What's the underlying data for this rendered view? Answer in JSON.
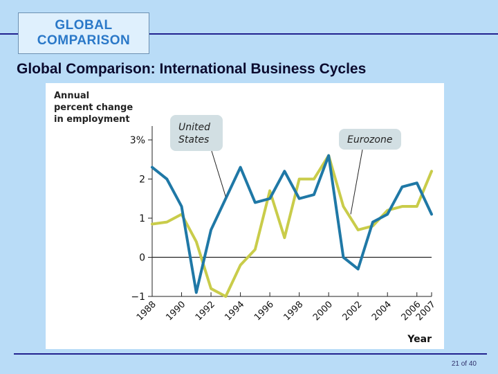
{
  "header": {
    "badge_line1": "GLOBAL",
    "badge_line2": "COMPARISON",
    "title": "Global Comparison: International Business Cycles"
  },
  "footer": {
    "page_label": "21 of 40"
  },
  "chart_data": {
    "type": "line",
    "ylabel_lines": [
      "Annual",
      "percent change",
      "in employment"
    ],
    "xlabel": "Year",
    "ylim": [
      -1,
      3
    ],
    "y_ticks": [
      {
        "value": -1,
        "label": "−1"
      },
      {
        "value": 0,
        "label": "0"
      },
      {
        "value": 1,
        "label": "1"
      },
      {
        "value": 2,
        "label": "2"
      },
      {
        "value": 3,
        "label": "3%"
      }
    ],
    "x_ticks": [
      "1988",
      "1990",
      "1992",
      "1994",
      "1996",
      "1998",
      "2000",
      "2002",
      "2004",
      "2006",
      "2007"
    ],
    "x": [
      1988,
      1989,
      1990,
      1991,
      1992,
      1993,
      1994,
      1995,
      1996,
      1997,
      1998,
      1999,
      2000,
      2001,
      2002,
      2003,
      2004,
      2005,
      2006,
      2007
    ],
    "series": [
      {
        "name": "United States",
        "label_lines": [
          "United",
          "States"
        ],
        "label_anchor": [
          1993,
          1.55
        ],
        "color": "#1f78a6",
        "values": [
          2.3,
          2.0,
          1.3,
          -0.9,
          0.7,
          1.5,
          2.3,
          1.4,
          1.5,
          2.2,
          1.5,
          1.6,
          2.6,
          0.0,
          -0.3,
          0.9,
          1.1,
          1.8,
          1.9,
          1.1
        ]
      },
      {
        "name": "Eurozone",
        "label_lines": [
          "Eurozone"
        ],
        "label_anchor": [
          2001.5,
          1.1
        ],
        "color": "#c9cc4a",
        "values": [
          0.85,
          0.9,
          1.1,
          0.4,
          -0.8,
          -1.0,
          -0.2,
          0.2,
          1.7,
          0.5,
          2.0,
          2.0,
          2.6,
          1.3,
          0.7,
          0.8,
          1.2,
          1.3,
          1.3,
          2.2
        ]
      }
    ],
    "grid": false,
    "zero_line": true,
    "legend": "callout-labels"
  }
}
